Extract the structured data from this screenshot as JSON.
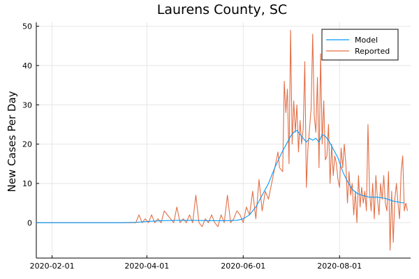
{
  "chart_data": {
    "type": "line",
    "title": "Laurens County, SC",
    "xlabel": "",
    "ylabel": "New Cases Per Day",
    "x_axis": {
      "type": "date",
      "range": [
        "2020-01-22",
        "2020-09-15"
      ],
      "ticks": [
        "2020-02-01",
        "2020-04-01",
        "2020-06-01",
        "2020-08-01"
      ]
    },
    "ylim": [
      -9,
      51
    ],
    "yticks": [
      0,
      10,
      20,
      30,
      40,
      50
    ],
    "grid": true,
    "legend": {
      "placement": "top-right",
      "entries": [
        "Model",
        "Reported"
      ]
    },
    "series": [
      {
        "name": "Model",
        "color": "#009AFA",
        "points": [
          [
            "2020-01-22",
            0
          ],
          [
            "2020-02-15",
            0
          ],
          [
            "2020-03-15",
            0
          ],
          [
            "2020-03-25",
            0.1
          ],
          [
            "2020-04-01",
            0.3
          ],
          [
            "2020-04-10",
            0.5
          ],
          [
            "2020-04-20",
            0.6
          ],
          [
            "2020-05-01",
            0.6
          ],
          [
            "2020-05-10",
            0.5
          ],
          [
            "2020-05-20",
            0.5
          ],
          [
            "2020-05-28",
            0.6
          ],
          [
            "2020-06-01",
            1
          ],
          [
            "2020-06-05",
            2
          ],
          [
            "2020-06-09",
            4
          ],
          [
            "2020-06-13",
            7
          ],
          [
            "2020-06-17",
            10
          ],
          [
            "2020-06-21",
            14
          ],
          [
            "2020-06-25",
            17.5
          ],
          [
            "2020-06-29",
            20.5
          ],
          [
            "2020-07-01",
            22
          ],
          [
            "2020-07-03",
            23
          ],
          [
            "2020-07-05",
            23.5
          ],
          [
            "2020-07-07",
            22.5
          ],
          [
            "2020-07-09",
            21.5
          ],
          [
            "2020-07-11",
            20.5
          ],
          [
            "2020-07-13",
            21.5
          ],
          [
            "2020-07-15",
            21
          ],
          [
            "2020-07-17",
            21.5
          ],
          [
            "2020-07-19",
            20.5
          ],
          [
            "2020-07-21",
            22.5
          ],
          [
            "2020-07-23",
            22
          ],
          [
            "2020-07-25",
            21
          ],
          [
            "2020-07-27",
            19.5
          ],
          [
            "2020-07-29",
            18
          ],
          [
            "2020-07-31",
            16.5
          ],
          [
            "2020-08-03",
            13
          ],
          [
            "2020-08-06",
            10.5
          ],
          [
            "2020-08-09",
            8.5
          ],
          [
            "2020-08-12",
            7.5
          ],
          [
            "2020-08-15",
            7
          ],
          [
            "2020-08-20",
            6.5
          ],
          [
            "2020-08-25",
            6.5
          ],
          [
            "2020-08-30",
            6.2
          ],
          [
            "2020-09-04",
            5.5
          ],
          [
            "2020-09-08",
            5.2
          ],
          [
            "2020-09-11",
            5
          ]
        ]
      },
      {
        "name": "Reported",
        "color": "#E26F46",
        "points": [
          [
            "2020-01-22",
            0
          ],
          [
            "2020-02-15",
            0
          ],
          [
            "2020-03-15",
            0
          ],
          [
            "2020-03-25",
            0
          ],
          [
            "2020-03-27",
            2
          ],
          [
            "2020-03-29",
            0
          ],
          [
            "2020-03-31",
            1
          ],
          [
            "2020-04-02",
            0
          ],
          [
            "2020-04-04",
            2
          ],
          [
            "2020-04-06",
            0
          ],
          [
            "2020-04-08",
            1
          ],
          [
            "2020-04-10",
            0
          ],
          [
            "2020-04-12",
            3
          ],
          [
            "2020-04-14",
            2
          ],
          [
            "2020-04-16",
            1
          ],
          [
            "2020-04-18",
            0
          ],
          [
            "2020-04-20",
            4
          ],
          [
            "2020-04-22",
            0
          ],
          [
            "2020-04-24",
            1
          ],
          [
            "2020-04-26",
            0
          ],
          [
            "2020-04-28",
            2
          ],
          [
            "2020-04-30",
            0
          ],
          [
            "2020-05-02",
            7
          ],
          [
            "2020-05-04",
            0
          ],
          [
            "2020-05-06",
            -1
          ],
          [
            "2020-05-08",
            1
          ],
          [
            "2020-05-10",
            0
          ],
          [
            "2020-05-12",
            2
          ],
          [
            "2020-05-14",
            0
          ],
          [
            "2020-05-16",
            -1
          ],
          [
            "2020-05-18",
            2
          ],
          [
            "2020-05-20",
            0
          ],
          [
            "2020-05-22",
            7
          ],
          [
            "2020-05-24",
            0
          ],
          [
            "2020-05-26",
            1
          ],
          [
            "2020-05-28",
            3
          ],
          [
            "2020-05-30",
            2
          ],
          [
            "2020-06-01",
            0
          ],
          [
            "2020-06-03",
            4
          ],
          [
            "2020-06-05",
            2
          ],
          [
            "2020-06-07",
            8
          ],
          [
            "2020-06-09",
            1
          ],
          [
            "2020-06-11",
            11
          ],
          [
            "2020-06-13",
            3
          ],
          [
            "2020-06-15",
            8
          ],
          [
            "2020-06-17",
            6
          ],
          [
            "2020-06-19",
            10
          ],
          [
            "2020-06-21",
            14
          ],
          [
            "2020-06-23",
            18
          ],
          [
            "2020-06-24",
            14
          ],
          [
            "2020-06-26",
            13
          ],
          [
            "2020-06-27",
            36
          ],
          [
            "2020-06-28",
            28
          ],
          [
            "2020-06-29",
            34
          ],
          [
            "2020-06-30",
            15
          ],
          [
            "2020-07-01",
            49
          ],
          [
            "2020-07-02",
            20
          ],
          [
            "2020-07-03",
            31
          ],
          [
            "2020-07-04",
            23
          ],
          [
            "2020-07-05",
            30
          ],
          [
            "2020-07-06",
            18
          ],
          [
            "2020-07-07",
            26
          ],
          [
            "2020-07-08",
            20
          ],
          [
            "2020-07-09",
            24
          ],
          [
            "2020-07-10",
            41
          ],
          [
            "2020-07-11",
            9
          ],
          [
            "2020-07-12",
            19
          ],
          [
            "2020-07-13",
            24
          ],
          [
            "2020-07-14",
            29
          ],
          [
            "2020-07-15",
            48
          ],
          [
            "2020-07-16",
            27
          ],
          [
            "2020-07-17",
            23
          ],
          [
            "2020-07-18",
            37
          ],
          [
            "2020-07-19",
            14
          ],
          [
            "2020-07-20",
            43
          ],
          [
            "2020-07-21",
            20
          ],
          [
            "2020-07-22",
            31
          ],
          [
            "2020-07-23",
            16
          ],
          [
            "2020-07-24",
            17
          ],
          [
            "2020-07-25",
            25
          ],
          [
            "2020-07-26",
            10
          ],
          [
            "2020-07-27",
            20
          ],
          [
            "2020-07-28",
            12
          ],
          [
            "2020-07-29",
            17
          ],
          [
            "2020-07-30",
            15
          ],
          [
            "2020-07-31",
            11
          ],
          [
            "2020-08-01",
            9
          ],
          [
            "2020-08-02",
            19
          ],
          [
            "2020-08-03",
            14
          ],
          [
            "2020-08-04",
            20
          ],
          [
            "2020-08-05",
            15
          ],
          [
            "2020-08-06",
            5
          ],
          [
            "2020-08-07",
            13
          ],
          [
            "2020-08-08",
            7
          ],
          [
            "2020-08-09",
            10
          ],
          [
            "2020-08-10",
            2
          ],
          [
            "2020-08-11",
            8
          ],
          [
            "2020-08-12",
            0
          ],
          [
            "2020-08-13",
            12
          ],
          [
            "2020-08-14",
            4
          ],
          [
            "2020-08-15",
            9
          ],
          [
            "2020-08-16",
            5
          ],
          [
            "2020-08-17",
            8
          ],
          [
            "2020-08-18",
            3
          ],
          [
            "2020-08-19",
            25
          ],
          [
            "2020-08-20",
            8
          ],
          [
            "2020-08-21",
            3
          ],
          [
            "2020-08-22",
            10
          ],
          [
            "2020-08-23",
            1
          ],
          [
            "2020-08-24",
            12
          ],
          [
            "2020-08-25",
            6
          ],
          [
            "2020-08-26",
            2
          ],
          [
            "2020-08-27",
            10
          ],
          [
            "2020-08-28",
            6
          ],
          [
            "2020-08-29",
            12
          ],
          [
            "2020-08-30",
            5
          ],
          [
            "2020-08-31",
            3
          ],
          [
            "2020-09-01",
            13
          ],
          [
            "2020-09-02",
            -7
          ],
          [
            "2020-09-03",
            8
          ],
          [
            "2020-09-04",
            -5
          ],
          [
            "2020-09-05",
            6
          ],
          [
            "2020-09-06",
            10
          ],
          [
            "2020-09-07",
            5
          ],
          [
            "2020-09-08",
            1
          ],
          [
            "2020-09-09",
            13
          ],
          [
            "2020-09-10",
            17
          ],
          [
            "2020-09-11",
            3
          ],
          [
            "2020-09-12",
            5
          ],
          [
            "2020-09-13",
            3
          ]
        ]
      }
    ]
  }
}
